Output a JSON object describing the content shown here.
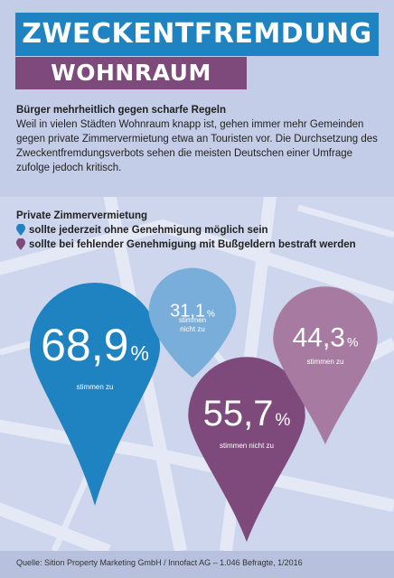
{
  "title": {
    "line1": "ZWECKENTFREMDUNG",
    "line2": "WOHNRAUM"
  },
  "intro": {
    "heading": "Bürger mehrheitlich gegen scharfe Regeln",
    "text": "Weil in vielen Städten Wohnraum knapp ist, gehen immer mehr Gemeinden gegen private Zimmervermietung etwa an Touristen vor.  Die Durchsetzung des Zweckentfremdungsverbots sehen die meisten Deutschen einer Umfrage zufolge jedoch kritisch."
  },
  "legend": {
    "title": "Private Zimmervermietung",
    "items": [
      {
        "label": "sollte jederzeit ohne Genehmigung möglich sein",
        "color": "#1f83c1"
      },
      {
        "label": "sollte bei fehlender Genehmigung mit Bußgeldern bestraft werden",
        "color": "#7e4a7b"
      }
    ]
  },
  "chart_data": {
    "type": "pie",
    "title": "Private Zimmervermietung",
    "unit": "%",
    "series": [
      {
        "name": "sollte jederzeit ohne Genehmigung möglich sein",
        "color": "#1f83c1",
        "points": [
          {
            "value": 68.9,
            "display": "68,9",
            "label": "stimmen zu",
            "color": "#1f83c1"
          },
          {
            "value": 31.1,
            "display": "31,1",
            "label": "stimmen nicht zu",
            "color": "#79aedb"
          }
        ]
      },
      {
        "name": "sollte bei fehlender Genehmigung mit Bußgeldern bestraft werden",
        "color": "#7e4a7b",
        "points": [
          {
            "value": 55.7,
            "display": "55,7",
            "label": "stimmen nicht zu",
            "color": "#7e4a7b"
          },
          {
            "value": 44.3,
            "display": "44,3",
            "label": "stimmen zu",
            "color": "#a77aa2"
          }
        ]
      }
    ]
  },
  "source": "Quelle: Sition Property Marketing GmbH / Innofact AG – 1.046 Befragte, 1/2016"
}
